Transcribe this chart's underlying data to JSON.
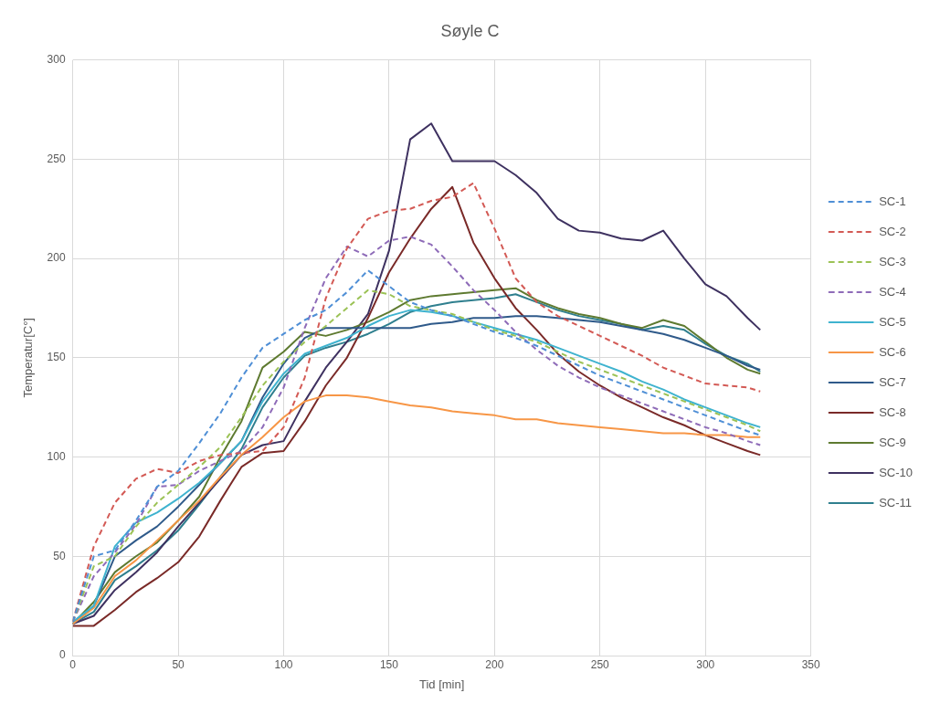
{
  "chart_data": {
    "type": "line",
    "title": "Søyle C",
    "xlabel": "Tid [min]",
    "ylabel": "Temperatur[C°]",
    "x": [
      0,
      10,
      20,
      30,
      40,
      50,
      60,
      70,
      80,
      90,
      100,
      110,
      120,
      130,
      140,
      150,
      160,
      170,
      180,
      190,
      200,
      210,
      220,
      230,
      240,
      250,
      260,
      270,
      280,
      290,
      300,
      310,
      320,
      326
    ],
    "xlim": [
      0,
      350
    ],
    "xticks": [
      0,
      50,
      100,
      150,
      200,
      250,
      300,
      350
    ],
    "ylim": [
      0,
      300
    ],
    "yticks": [
      0,
      50,
      100,
      150,
      200,
      250,
      300
    ],
    "grid": true,
    "legend": "right",
    "marker": "none",
    "series": [
      {
        "name": "SC-1",
        "color": "#4f8fd6",
        "line_style": "dashed",
        "values": [
          17,
          50,
          53,
          68,
          85,
          93,
          107,
          122,
          140,
          155,
          162,
          169,
          174,
          183,
          194,
          186,
          178,
          174,
          171,
          167,
          163,
          160,
          156,
          151,
          146,
          141,
          137,
          133,
          129,
          125,
          121,
          117,
          113,
          111
        ]
      },
      {
        "name": "SC-2",
        "color": "#d35a55",
        "line_style": "dashed",
        "values": [
          17,
          55,
          77,
          89,
          94,
          92,
          98,
          101,
          102,
          103,
          115,
          140,
          180,
          205,
          220,
          224,
          225,
          229,
          231,
          238,
          215,
          190,
          178,
          171,
          166,
          161,
          156,
          151,
          145,
          141,
          137,
          136,
          135,
          133
        ]
      },
      {
        "name": "SC-3",
        "color": "#9bc255",
        "line_style": "dashed",
        "values": [
          17,
          45,
          50,
          65,
          77,
          86,
          95,
          105,
          120,
          136,
          148,
          158,
          166,
          175,
          184,
          182,
          176,
          174,
          172,
          168,
          164,
          161,
          158,
          153,
          148,
          144,
          140,
          136,
          132,
          128,
          124,
          120,
          116,
          113
        ]
      },
      {
        "name": "SC-4",
        "color": "#8e6bb8",
        "line_style": "dashed",
        "values": [
          17,
          40,
          52,
          66,
          85,
          86,
          93,
          98,
          103,
          115,
          135,
          165,
          190,
          206,
          201,
          209,
          211,
          207,
          196,
          184,
          174,
          163,
          154,
          146,
          140,
          135,
          131,
          127,
          123,
          119,
          115,
          112,
          108,
          106
        ]
      },
      {
        "name": "SC-5",
        "color": "#3fb3cf",
        "line_style": "solid",
        "values": [
          17,
          25,
          55,
          67,
          72,
          79,
          87,
          97,
          108,
          128,
          142,
          152,
          156,
          160,
          166,
          171,
          174,
          173,
          171,
          168,
          165,
          162,
          159,
          155,
          151,
          147,
          143,
          138,
          134,
          129,
          125,
          121,
          117,
          115
        ]
      },
      {
        "name": "SC-6",
        "color": "#f79646",
        "line_style": "solid",
        "values": [
          16,
          24,
          40,
          48,
          58,
          68,
          78,
          90,
          101,
          110,
          120,
          128,
          131,
          131,
          130,
          128,
          126,
          125,
          123,
          122,
          121,
          119,
          119,
          117,
          116,
          115,
          114,
          113,
          112,
          112,
          111,
          111,
          110,
          110
        ]
      },
      {
        "name": "SC-7",
        "color": "#2f5a8a",
        "line_style": "solid",
        "values": [
          16,
          25,
          50,
          58,
          65,
          75,
          86,
          97,
          108,
          130,
          147,
          160,
          165,
          165,
          165,
          165,
          165,
          167,
          168,
          170,
          170,
          171,
          171,
          170,
          169,
          168,
          166,
          164,
          162,
          159,
          155,
          151,
          146,
          144
        ]
      },
      {
        "name": "SC-8",
        "color": "#7a2a28",
        "line_style": "solid",
        "values": [
          15,
          15,
          23,
          32,
          39,
          47,
          60,
          78,
          95,
          102,
          103,
          118,
          136,
          150,
          170,
          193,
          210,
          225,
          236,
          208,
          190,
          175,
          164,
          152,
          143,
          136,
          130,
          125,
          120,
          116,
          111,
          107,
          103,
          101
        ]
      },
      {
        "name": "SC-9",
        "color": "#5e7a30",
        "line_style": "solid",
        "values": [
          16,
          27,
          42,
          50,
          57,
          68,
          80,
          100,
          118,
          145,
          153,
          163,
          161,
          164,
          168,
          173,
          179,
          181,
          182,
          183,
          184,
          185,
          179,
          175,
          172,
          170,
          167,
          165,
          169,
          166,
          158,
          150,
          144,
          142
        ]
      },
      {
        "name": "SC-10",
        "color": "#3e3160",
        "line_style": "solid",
        "values": [
          16,
          20,
          33,
          42,
          52,
          65,
          77,
          89,
          101,
          106,
          108,
          128,
          145,
          158,
          172,
          204,
          260,
          268,
          249,
          249,
          249,
          242,
          233,
          220,
          214,
          213,
          210,
          209,
          214,
          200,
          187,
          181,
          170,
          164
        ]
      },
      {
        "name": "SC-11",
        "color": "#2f7f8e",
        "line_style": "solid",
        "values": [
          16,
          22,
          38,
          45,
          53,
          63,
          76,
          90,
          104,
          125,
          140,
          151,
          155,
          158,
          162,
          167,
          173,
          176,
          178,
          179,
          180,
          182,
          178,
          174,
          171,
          169,
          167,
          164,
          166,
          164,
          157,
          151,
          147,
          143
        ]
      }
    ]
  }
}
